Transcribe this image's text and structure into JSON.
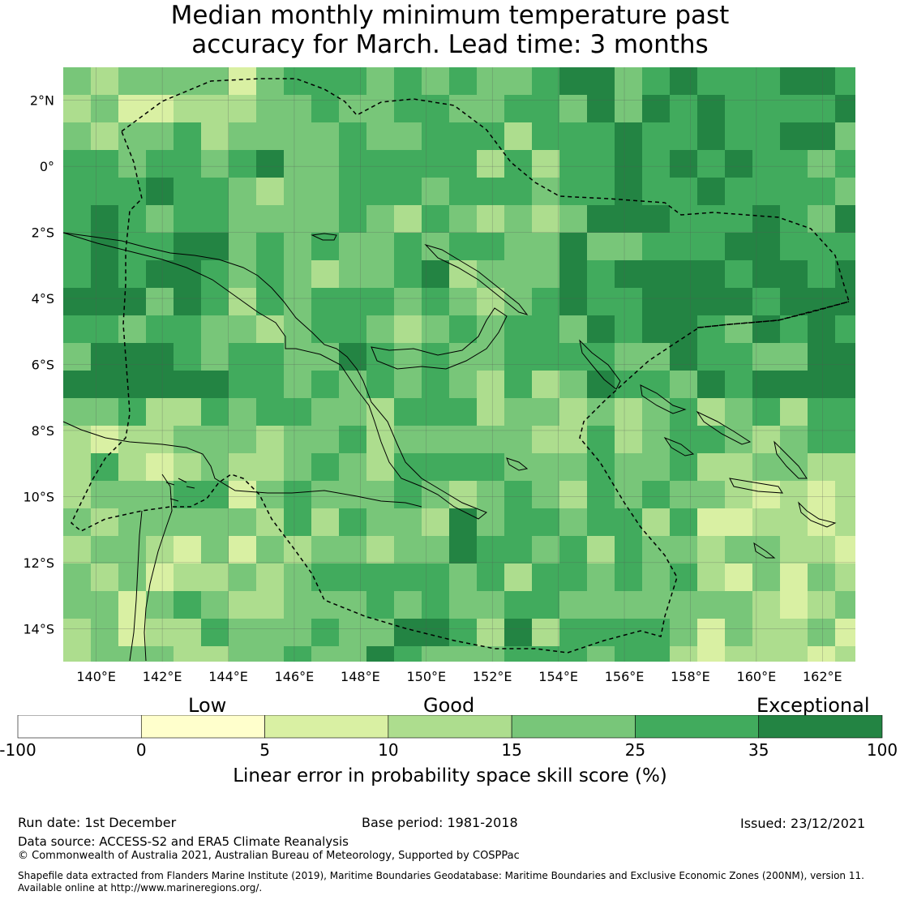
{
  "title_line1": "Median monthly minimum temperature past",
  "title_line2": "accuracy for March. Lead time: 3 months",
  "map": {
    "lon_ticks": [
      "140°E",
      "142°E",
      "144°E",
      "146°E",
      "148°E",
      "150°E",
      "152°E",
      "154°E",
      "156°E",
      "158°E",
      "160°E",
      "162°E"
    ],
    "lat_ticks": [
      "2°N",
      "0°",
      "2°S",
      "4°S",
      "6°S",
      "8°S",
      "10°S",
      "12°S",
      "14°S"
    ],
    "grid_lon_range": [
      139,
      163
    ],
    "grid_lat_range": [
      -15,
      3
    ]
  },
  "legend": {
    "category_low": "Low",
    "category_good": "Good",
    "category_exceptional": "Exceptional",
    "tick_labels": [
      "-100",
      "0",
      "5",
      "10",
      "15",
      "25",
      "35",
      "100"
    ],
    "bins": [
      {
        "from": -100,
        "to": 0,
        "color": "#ffffff"
      },
      {
        "from": 0,
        "to": 5,
        "color": "#ffffcc"
      },
      {
        "from": 5,
        "to": 10,
        "color": "#d9f0a3"
      },
      {
        "from": 10,
        "to": 15,
        "color": "#addd8e"
      },
      {
        "from": 15,
        "to": 25,
        "color": "#78c679"
      },
      {
        "from": 25,
        "to": 35,
        "color": "#41ab5d"
      },
      {
        "from": 35,
        "to": 100,
        "color": "#238443"
      }
    ],
    "title": "Linear error in probability space skill score (%)"
  },
  "footer": {
    "run_date": "Run date: 1st December",
    "base_period": "Base period: 1981-2018",
    "issued": "Issued: 23/12/2021",
    "data_source": "Data source: ACCESS-S2 and ERA5 Climate Reanalysis",
    "copyright": "© Commonwealth of Australia 2021, Australian Bureau of Meteorology, Supported by COSPPac",
    "shapefile_line1": "Shapefile data extracted from Flanders Marine Institute (2019), Maritime Boundaries Geodatabase: Maritime Boundaries and Exclusive Economic Zones (200NM), version 11.",
    "shapefile_line2": "Available online at http://www.marineregions.org/."
  }
}
